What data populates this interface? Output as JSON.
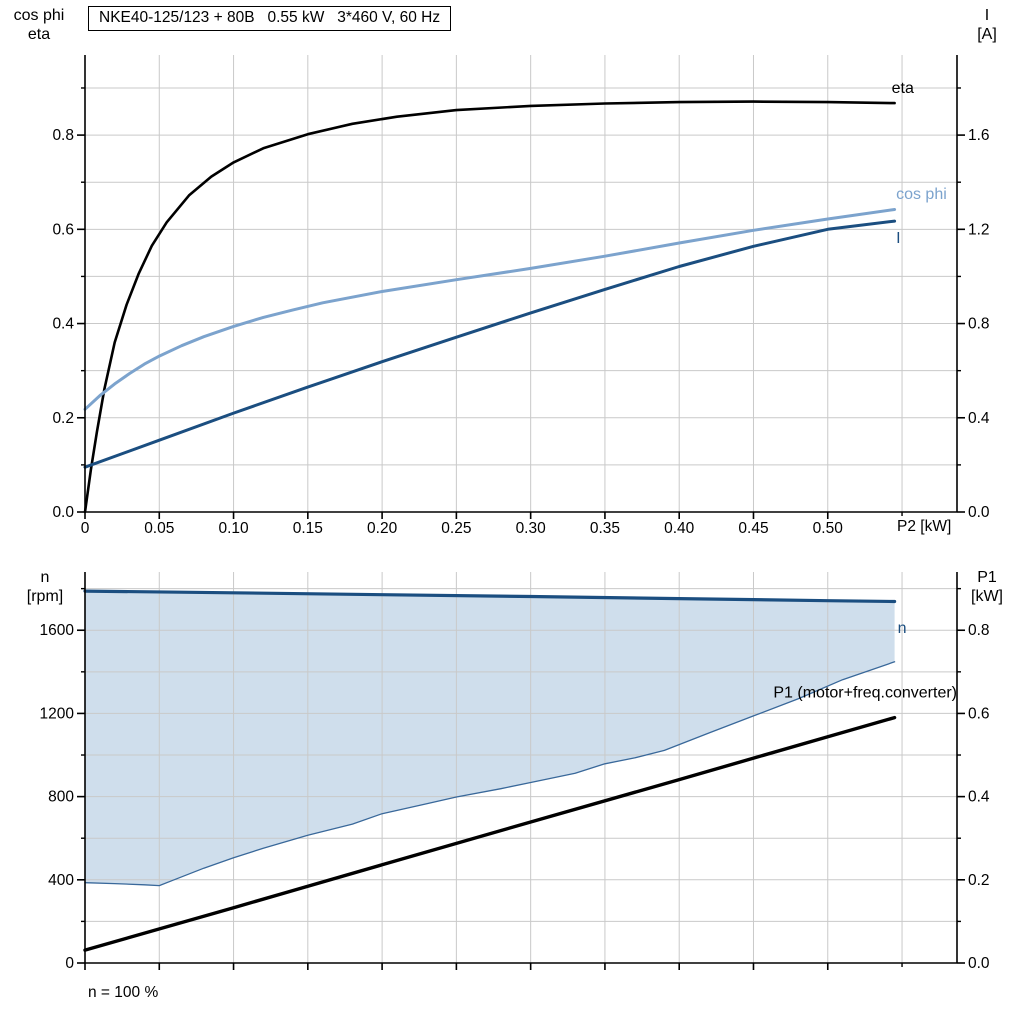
{
  "style": {
    "background": "#ffffff",
    "grid_color": "#c9c9c9",
    "axis_color": "#000000",
    "dark_blue": "#1b4e80",
    "light_blue": "#7ca3cd",
    "band_fill": "#cfdeec"
  },
  "chart_data": [
    {
      "type": "line",
      "title": "NKE40-125/123 + 80B   0.55 kW   3*460 V, 60 Hz",
      "x_axis": {
        "label": "P2 [kW]",
        "range": [
          0,
          0.587
        ],
        "ticks": [
          0,
          0.05,
          0.1,
          0.15,
          0.2,
          0.25,
          0.3,
          0.35,
          0.4,
          0.45,
          0.5
        ],
        "tick_labels": [
          "0",
          "0.05",
          "0.10",
          "0.15",
          "0.20",
          "0.25",
          "0.30",
          "0.35",
          "0.40",
          "0.45",
          "0.50"
        ],
        "minor": [
          0.55
        ],
        "grid": [
          0.05,
          0.1,
          0.15,
          0.2,
          0.25,
          0.3,
          0.35,
          0.4,
          0.45,
          0.5,
          0.55
        ]
      },
      "y_left": {
        "title": [
          "cos phi",
          "eta"
        ],
        "range": [
          0,
          0.97
        ],
        "ticks": [
          0,
          0.2,
          0.4,
          0.6,
          0.8
        ],
        "tick_labels": [
          "0.0",
          "0.2",
          "0.4",
          "0.6",
          "0.8"
        ],
        "minor": [
          0.1,
          0.3,
          0.5,
          0.7,
          0.9
        ],
        "grid": [
          0.1,
          0.2,
          0.3,
          0.4,
          0.5,
          0.6,
          0.7,
          0.8,
          0.9
        ]
      },
      "y_right": {
        "title": [
          "I",
          "[A]"
        ],
        "range": [
          0,
          1.94
        ],
        "ticks": [
          0,
          0.4,
          0.8,
          1.2,
          1.6
        ],
        "tick_labels": [
          "0.0",
          "0.4",
          "0.8",
          "1.2",
          "1.6"
        ],
        "minor": [
          0.2,
          0.6,
          1.0,
          1.4,
          1.8
        ]
      },
      "series": [
        {
          "name": "eta",
          "axis": "left",
          "color": "#000000",
          "width": 2.6,
          "points": [
            [
              0,
              0
            ],
            [
              0.004,
              0.09
            ],
            [
              0.008,
              0.17
            ],
            [
              0.013,
              0.26
            ],
            [
              0.02,
              0.36
            ],
            [
              0.028,
              0.44
            ],
            [
              0.036,
              0.505
            ],
            [
              0.045,
              0.565
            ],
            [
              0.055,
              0.615
            ],
            [
              0.07,
              0.672
            ],
            [
              0.085,
              0.712
            ],
            [
              0.1,
              0.742
            ],
            [
              0.12,
              0.772
            ],
            [
              0.15,
              0.802
            ],
            [
              0.18,
              0.824
            ],
            [
              0.21,
              0.839
            ],
            [
              0.25,
              0.853
            ],
            [
              0.3,
              0.862
            ],
            [
              0.35,
              0.867
            ],
            [
              0.4,
              0.87
            ],
            [
              0.45,
              0.871
            ],
            [
              0.5,
              0.87
            ],
            [
              0.545,
              0.868
            ]
          ]
        },
        {
          "name": "cos phi",
          "axis": "left",
          "color": "#7ca3cd",
          "width": 3,
          "points": [
            [
              0,
              0.218
            ],
            [
              0.01,
              0.247
            ],
            [
              0.02,
              0.272
            ],
            [
              0.03,
              0.294
            ],
            [
              0.04,
              0.314
            ],
            [
              0.05,
              0.331
            ],
            [
              0.065,
              0.353
            ],
            [
              0.08,
              0.372
            ],
            [
              0.1,
              0.394
            ],
            [
              0.12,
              0.413
            ],
            [
              0.14,
              0.429
            ],
            [
              0.16,
              0.444
            ],
            [
              0.2,
              0.468
            ],
            [
              0.25,
              0.493
            ],
            [
              0.3,
              0.517
            ],
            [
              0.35,
              0.543
            ],
            [
              0.4,
              0.571
            ],
            [
              0.45,
              0.598
            ],
            [
              0.5,
              0.622
            ],
            [
              0.545,
              0.642
            ]
          ]
        },
        {
          "name": "I",
          "axis": "right",
          "color": "#1b4e80",
          "width": 3,
          "points": [
            [
              0,
              0.19
            ],
            [
              0.05,
              0.305
            ],
            [
              0.1,
              0.42
            ],
            [
              0.15,
              0.53
            ],
            [
              0.2,
              0.638
            ],
            [
              0.25,
              0.742
            ],
            [
              0.3,
              0.845
            ],
            [
              0.35,
              0.945
            ],
            [
              0.4,
              1.042
            ],
            [
              0.45,
              1.128
            ],
            [
              0.5,
              1.2
            ],
            [
              0.545,
              1.235
            ]
          ]
        }
      ],
      "annotations": [
        {
          "text": "eta",
          "x": 0.543,
          "y": 0.9,
          "axis": "left",
          "color": "#000000",
          "anchor": "start"
        },
        {
          "text": "cos phi",
          "x": 0.546,
          "y": 0.675,
          "axis": "left",
          "color": "#7ca3cd",
          "anchor": "start"
        },
        {
          "text": "I",
          "x": 0.546,
          "y": 0.582,
          "axis": "left",
          "color": "#1b4e80",
          "anchor": "start"
        }
      ]
    },
    {
      "type": "line+area",
      "footnote": "n = 100 %",
      "x_axis": {
        "label": "",
        "range": [
          0,
          0.587
        ],
        "ticks": [
          0,
          0.05,
          0.1,
          0.15,
          0.2,
          0.25,
          0.3,
          0.35,
          0.4,
          0.45,
          0.5
        ],
        "tick_labels": [],
        "minor": [
          0.55
        ],
        "grid": [
          0.05,
          0.1,
          0.15,
          0.2,
          0.25,
          0.3,
          0.35,
          0.4,
          0.45,
          0.5,
          0.55
        ]
      },
      "y_left": {
        "title": [
          "n",
          "[rpm]"
        ],
        "range": [
          0,
          1880
        ],
        "ticks": [
          0,
          400,
          800,
          1200,
          1600
        ],
        "tick_labels": [
          "0",
          "400",
          "800",
          "1200",
          "1600"
        ],
        "minor": [
          200,
          600,
          1000,
          1400,
          1800
        ],
        "grid": [
          200,
          400,
          600,
          800,
          1000,
          1200,
          1400,
          1600,
          1800
        ]
      },
      "y_right": {
        "title": [
          "P1",
          "[kW]"
        ],
        "range": [
          0,
          0.94
        ],
        "ticks": [
          0,
          0.2,
          0.4,
          0.6,
          0.8
        ],
        "tick_labels": [
          "0.0",
          "0.2",
          "0.4",
          "0.6",
          "0.8"
        ],
        "minor": [
          0.1,
          0.3,
          0.5,
          0.7,
          0.9
        ]
      },
      "area": {
        "between": [
          "n",
          "n min"
        ],
        "axis": "left",
        "fill": "#cfdeec"
      },
      "series": [
        {
          "name": "n",
          "axis": "left",
          "color": "#1b4e80",
          "width": 3.2,
          "points": [
            [
              0,
              1788
            ],
            [
              0.1,
              1780
            ],
            [
              0.2,
              1771
            ],
            [
              0.3,
              1762
            ],
            [
              0.4,
              1752
            ],
            [
              0.5,
              1742
            ],
            [
              0.545,
              1738
            ]
          ]
        },
        {
          "name": "n min",
          "axis": "left",
          "color": "#39689a",
          "width": 1.3,
          "points": [
            [
              0,
              386
            ],
            [
              0.02,
              382
            ],
            [
              0.04,
              376
            ],
            [
              0.05,
              372
            ],
            [
              0.06,
              400
            ],
            [
              0.08,
              456
            ],
            [
              0.1,
              506
            ],
            [
              0.12,
              552
            ],
            [
              0.15,
              614
            ],
            [
              0.18,
              668
            ],
            [
              0.2,
              718
            ],
            [
              0.23,
              766
            ],
            [
              0.25,
              798
            ],
            [
              0.28,
              838
            ],
            [
              0.3,
              868
            ],
            [
              0.33,
              912
            ],
            [
              0.35,
              958
            ],
            [
              0.37,
              986
            ],
            [
              0.39,
              1022
            ],
            [
              0.42,
              1106
            ],
            [
              0.45,
              1188
            ],
            [
              0.48,
              1270
            ],
            [
              0.51,
              1362
            ],
            [
              0.545,
              1448
            ]
          ]
        },
        {
          "name": "P1 (motor+freq.converter)",
          "axis": "right",
          "color": "#000000",
          "width": 3.4,
          "points": [
            [
              0,
              0.031
            ],
            [
              0.1,
              0.133
            ],
            [
              0.2,
              0.236
            ],
            [
              0.3,
              0.339
            ],
            [
              0.4,
              0.441
            ],
            [
              0.5,
              0.544
            ],
            [
              0.545,
              0.59
            ]
          ]
        }
      ],
      "annotations": [
        {
          "text": "n",
          "x": 0.547,
          "y": 1610,
          "axis": "left",
          "color": "#1b4e80",
          "anchor": "start"
        },
        {
          "text": "P1 (motor+freq.converter)",
          "x": 0.587,
          "y": 1300,
          "axis": "left",
          "color": "#000000",
          "anchor": "end"
        }
      ]
    }
  ]
}
